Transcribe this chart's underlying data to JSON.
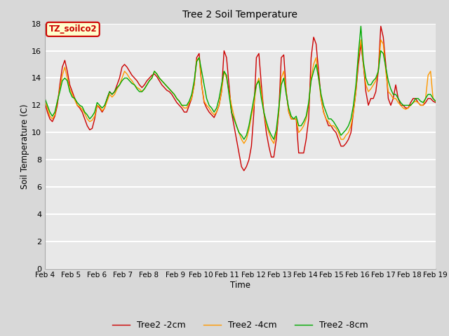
{
  "title": "Tree 2 Soil Temperature",
  "xlabel": "Time",
  "ylabel": "Soil Temperature (C)",
  "ylim": [
    0,
    18
  ],
  "yticks": [
    0,
    2,
    4,
    6,
    8,
    10,
    12,
    14,
    16,
    18
  ],
  "x_labels": [
    "Feb 4",
    "Feb 5",
    "Feb 6",
    "Feb 7",
    "Feb 8",
    "Feb 9",
    "Feb 10",
    "Feb 11",
    "Feb 12",
    "Feb 13",
    "Feb 14",
    "Feb 15",
    "Feb 16",
    "Feb 17",
    "Feb 18",
    "Feb 19"
  ],
  "annotation_text": "TZ_soilco2",
  "annotation_bg": "#ffffcc",
  "annotation_border": "#cc0000",
  "legend_labels": [
    "Tree2 -2cm",
    "Tree2 -4cm",
    "Tree2 -8cm"
  ],
  "colors": [
    "#cc0000",
    "#ff9900",
    "#00aa00"
  ],
  "background_color": "#d8d8d8",
  "plot_bg": "#e8e8e8",
  "tree2_2cm": [
    12.2,
    11.5,
    11.0,
    10.8,
    11.2,
    12.0,
    13.5,
    14.8,
    15.3,
    14.5,
    13.5,
    13.0,
    12.5,
    12.0,
    11.8,
    11.5,
    11.0,
    10.5,
    10.2,
    10.3,
    11.0,
    12.0,
    11.8,
    11.5,
    11.8,
    12.5,
    13.0,
    12.8,
    13.0,
    13.5,
    14.0,
    14.8,
    15.0,
    14.8,
    14.5,
    14.2,
    14.0,
    13.8,
    13.5,
    13.3,
    13.5,
    13.8,
    14.0,
    14.2,
    14.3,
    14.1,
    13.8,
    13.5,
    13.3,
    13.1,
    13.0,
    12.8,
    12.5,
    12.2,
    12.0,
    11.8,
    11.5,
    11.5,
    12.0,
    12.5,
    13.5,
    15.5,
    15.8,
    13.5,
    12.2,
    11.8,
    11.5,
    11.3,
    11.1,
    11.5,
    12.0,
    13.0,
    16.0,
    15.5,
    13.5,
    11.5,
    10.5,
    9.5,
    8.5,
    7.5,
    7.2,
    7.5,
    8.0,
    9.0,
    11.5,
    15.5,
    15.8,
    13.5,
    11.5,
    10.0,
    9.0,
    8.2,
    8.2,
    9.5,
    11.5,
    15.5,
    15.7,
    13.0,
    11.5,
    11.0,
    11.0,
    11.0,
    8.5,
    8.5,
    8.5,
    9.5,
    11.0,
    15.5,
    17.0,
    16.5,
    14.5,
    12.5,
    11.5,
    11.0,
    10.5,
    10.5,
    10.2,
    10.0,
    9.5,
    9.0,
    9.0,
    9.2,
    9.5,
    10.0,
    11.5,
    13.0,
    15.0,
    16.5,
    15.0,
    13.0,
    12.0,
    12.5,
    12.5,
    13.0,
    14.5,
    17.8,
    17.0,
    15.0,
    12.5,
    12.0,
    12.5,
    13.5,
    12.5,
    12.0,
    12.0,
    11.8,
    11.8,
    12.2,
    12.5,
    12.5,
    12.2,
    12.0,
    12.0,
    12.2,
    12.5,
    12.5,
    12.3,
    12.2
  ],
  "tree2_4cm": [
    12.3,
    11.8,
    11.2,
    11.0,
    11.3,
    12.2,
    13.2,
    14.2,
    14.8,
    14.0,
    13.2,
    12.8,
    12.4,
    12.0,
    11.9,
    11.7,
    11.4,
    11.0,
    10.8,
    10.9,
    11.2,
    12.0,
    11.9,
    11.6,
    11.8,
    12.3,
    12.8,
    12.6,
    12.8,
    13.2,
    13.5,
    14.0,
    14.5,
    14.3,
    14.0,
    13.8,
    13.5,
    13.3,
    13.2,
    13.0,
    13.2,
    13.5,
    13.8,
    14.0,
    14.5,
    14.3,
    14.0,
    13.8,
    13.6,
    13.4,
    13.2,
    13.0,
    12.8,
    12.5,
    12.3,
    12.0,
    11.8,
    11.8,
    12.2,
    12.5,
    13.5,
    15.3,
    15.5,
    13.5,
    12.3,
    12.0,
    11.8,
    11.5,
    11.3,
    11.5,
    12.0,
    13.0,
    14.5,
    14.0,
    13.0,
    12.0,
    11.2,
    10.5,
    10.0,
    9.5,
    9.2,
    9.5,
    10.2,
    11.2,
    12.0,
    13.5,
    14.0,
    13.0,
    11.5,
    10.5,
    10.0,
    9.5,
    9.2,
    10.0,
    11.5,
    14.0,
    14.5,
    13.0,
    11.5,
    11.0,
    11.0,
    11.0,
    10.0,
    10.2,
    10.5,
    11.0,
    12.0,
    14.0,
    15.0,
    15.5,
    14.0,
    12.5,
    11.5,
    11.0,
    10.8,
    10.5,
    10.5,
    10.3,
    10.0,
    9.5,
    9.5,
    9.8,
    10.0,
    10.5,
    11.5,
    13.0,
    15.5,
    16.8,
    15.0,
    13.5,
    13.0,
    13.2,
    13.5,
    13.8,
    14.5,
    16.8,
    16.5,
    14.5,
    13.0,
    12.8,
    12.5,
    12.5,
    12.2,
    12.0,
    11.8,
    11.7,
    11.8,
    12.0,
    12.2,
    12.3,
    12.2,
    12.0,
    12.0,
    12.5,
    14.2,
    14.5,
    12.5,
    12.3
  ],
  "tree2_8cm": [
    12.5,
    12.0,
    11.5,
    11.2,
    11.5,
    12.3,
    13.0,
    13.8,
    14.0,
    13.8,
    13.0,
    12.6,
    12.5,
    12.2,
    12.0,
    11.9,
    11.5,
    11.3,
    11.0,
    11.2,
    11.5,
    12.2,
    12.0,
    11.8,
    12.0,
    12.5,
    13.0,
    12.8,
    13.0,
    13.3,
    13.5,
    13.8,
    14.0,
    14.0,
    13.8,
    13.6,
    13.5,
    13.2,
    13.0,
    13.0,
    13.2,
    13.5,
    13.8,
    14.0,
    14.5,
    14.3,
    14.0,
    13.8,
    13.6,
    13.4,
    13.2,
    13.0,
    12.8,
    12.5,
    12.3,
    12.0,
    12.0,
    12.0,
    12.3,
    12.8,
    13.8,
    15.2,
    15.5,
    14.5,
    13.5,
    12.5,
    12.0,
    11.8,
    11.5,
    11.8,
    12.5,
    13.5,
    14.5,
    14.2,
    12.8,
    11.5,
    11.0,
    10.5,
    10.0,
    9.8,
    9.5,
    9.8,
    10.5,
    11.5,
    12.5,
    13.5,
    13.8,
    12.5,
    11.5,
    10.8,
    10.2,
    9.8,
    9.5,
    10.2,
    11.8,
    13.5,
    14.0,
    12.8,
    11.8,
    11.2,
    11.0,
    11.2,
    10.5,
    10.5,
    10.8,
    11.2,
    12.2,
    13.8,
    14.5,
    15.0,
    14.0,
    12.8,
    12.0,
    11.5,
    11.0,
    11.0,
    10.8,
    10.5,
    10.2,
    9.8,
    10.0,
    10.2,
    10.5,
    11.0,
    12.0,
    13.5,
    15.8,
    17.8,
    15.2,
    14.0,
    13.5,
    13.5,
    13.8,
    14.0,
    14.5,
    16.0,
    15.8,
    14.8,
    13.8,
    13.2,
    12.8,
    12.8,
    12.5,
    12.2,
    12.0,
    12.0,
    12.0,
    12.0,
    12.2,
    12.5,
    12.5,
    12.3,
    12.2,
    12.5,
    12.8,
    12.8,
    12.5,
    12.3
  ]
}
